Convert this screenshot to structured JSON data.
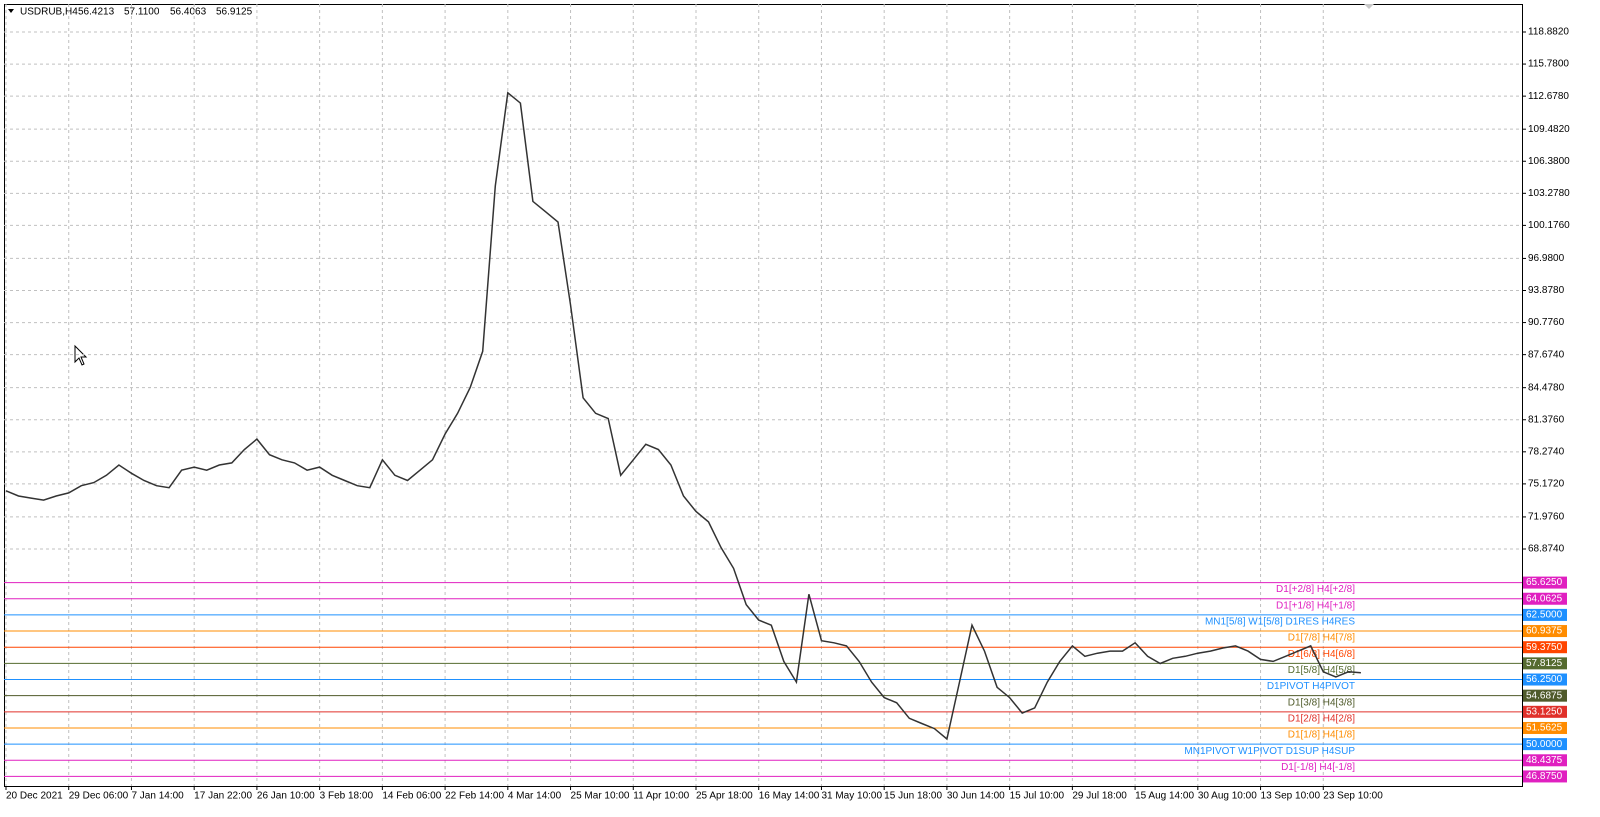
{
  "chart_data": {
    "type": "line",
    "title": "USDRUB,H4",
    "quote_labels": [
      "56.4213",
      "57.1100",
      "56.4063",
      "56.9125"
    ],
    "categories": [
      "20 Dec 2021",
      null,
      null,
      null,
      null,
      "29 Dec 06:00",
      null,
      null,
      null,
      null,
      "7 Jan 14:00",
      null,
      null,
      null,
      null,
      "17 Jan 22:00",
      null,
      null,
      null,
      null,
      "26 Jan 10:00",
      null,
      null,
      null,
      null,
      "3 Feb 18:00",
      null,
      null,
      null,
      null,
      "14 Feb 06:00",
      null,
      null,
      null,
      null,
      "22 Feb 14:00",
      null,
      null,
      null,
      null,
      "4 Mar 14:00",
      null,
      null,
      null,
      null,
      "25 Mar 10:00",
      null,
      null,
      null,
      null,
      "11 Apr 10:00",
      null,
      null,
      null,
      null,
      "25 Apr 18:00",
      null,
      null,
      null,
      null,
      "16 May 14:00",
      null,
      null,
      null,
      null,
      "31 May 10:00",
      null,
      null,
      null,
      null,
      "15 Jun 18:00",
      null,
      null,
      null,
      null,
      "30 Jun 14:00",
      null,
      null,
      null,
      null,
      "15 Jul 10:00",
      null,
      null,
      null,
      null,
      "29 Jul 18:00",
      null,
      null,
      null,
      null,
      "15 Aug 14:00",
      null,
      null,
      null,
      null,
      "30 Aug 10:00",
      null,
      null,
      null,
      null,
      "13 Sep 10:00",
      null,
      null,
      null,
      null,
      "23 Sep 10:00",
      null,
      null,
      null
    ],
    "series": [
      {
        "name": "USDRUB",
        "color": "#333333",
        "values": [
          74.5,
          74.0,
          73.8,
          73.6,
          74.0,
          74.3,
          75.0,
          75.3,
          76.0,
          77.0,
          76.2,
          75.5,
          75.0,
          74.8,
          76.5,
          76.8,
          76.5,
          77.0,
          77.2,
          78.5,
          79.5,
          78.0,
          77.5,
          77.2,
          76.5,
          76.8,
          76.0,
          75.5,
          75.0,
          74.8,
          77.5,
          76.0,
          75.5,
          76.5,
          77.5,
          80.0,
          82.0,
          84.5,
          88.0,
          104,
          113,
          112,
          102.5,
          101.5,
          100.5,
          92.5,
          83.5,
          82,
          81.5,
          76,
          77.5,
          79,
          78.5,
          77.0,
          74,
          72.5,
          71.5,
          69,
          67.0,
          63.5,
          62.0,
          61.5,
          58,
          56,
          64.5,
          60,
          59.8,
          59.5,
          58.0,
          56.0,
          54.5,
          54.0,
          52.5,
          52.0,
          51.5,
          50.5,
          56,
          61.5,
          59.0,
          55.5,
          54.5,
          53.0,
          53.5,
          56.0,
          58.0,
          59.5,
          58.5,
          58.8,
          59.0,
          59.0,
          59.8,
          58.5,
          57.8,
          58.3,
          58.5,
          58.8,
          59.0,
          59.3,
          59.5,
          59.0,
          58.2,
          58.0,
          58.5,
          59.0,
          59.5,
          57.0,
          56.5,
          57.0,
          56.9
        ]
      }
    ],
    "ylim": [
      45.95,
      121.59
    ],
    "yticks": [
      {
        "value": 118.882,
        "label": "118.8820"
      },
      {
        "value": 115.78,
        "label": "115.7800"
      },
      {
        "value": 112.678,
        "label": "112.6780"
      },
      {
        "value": 109.482,
        "label": "109.4820"
      },
      {
        "value": 106.38,
        "label": "106.3800"
      },
      {
        "value": 103.278,
        "label": "103.2780"
      },
      {
        "value": 100.176,
        "label": "100.1760"
      },
      {
        "value": 96.98,
        "label": "96.9800"
      },
      {
        "value": 93.878,
        "label": "93.8780"
      },
      {
        "value": 90.776,
        "label": "90.7760"
      },
      {
        "value": 87.674,
        "label": "87.6740"
      },
      {
        "value": 84.478,
        "label": "84.4780"
      },
      {
        "value": 81.376,
        "label": "81.3760"
      },
      {
        "value": 78.274,
        "label": "78.2740"
      },
      {
        "value": 75.172,
        "label": "75.1720"
      },
      {
        "value": 71.976,
        "label": "71.9760"
      },
      {
        "value": 68.874,
        "label": "68.8740"
      }
    ],
    "grid": true,
    "levels": [
      {
        "value": 65.625,
        "label": "65.6250",
        "text": "D1[+2/8] H4[+2/8]",
        "color": "#e020c0"
      },
      {
        "value": 64.0625,
        "label": "64.0625",
        "text": "D1[+1/8] H4[+1/8]",
        "color": "#e020c0"
      },
      {
        "value": 62.5,
        "label": "62.5000",
        "text": "MN1[5/8] W1[5/8] D1RES H4RES",
        "color": "#1e90ff"
      },
      {
        "value": 60.9375,
        "label": "60.9375",
        "text": "D1[7/8] H4[7/8]",
        "color": "#ff8c00"
      },
      {
        "value": 59.375,
        "label": "59.3750",
        "text": "D1[6/8] H4[6/8]",
        "color": "#ff4500"
      },
      {
        "value": 57.8125,
        "label": "57.8125",
        "text": "D1[5/8] H4[5/8]",
        "color": "#556b2f"
      },
      {
        "value": 56.25,
        "label": "56.2500",
        "text": "D1PIVOT H4PIVOT",
        "color": "#1e90ff"
      },
      {
        "value": 54.6875,
        "label": "54.6875",
        "text": "D1[3/8] H4[3/8]",
        "color": "#4f5a2a"
      },
      {
        "value": 53.125,
        "label": "53.1250",
        "text": "D1[2/8] H4[2/8]",
        "color": "#e0302a"
      },
      {
        "value": 51.5625,
        "label": "51.5625",
        "text": "D1[1/8] H4[1/8]",
        "color": "#ff8c00"
      },
      {
        "value": 50.0,
        "label": "50.0000",
        "text": "MN1PIVOT W1PIVOT D1SUP H4SUP",
        "color": "#1e90ff"
      },
      {
        "value": 48.4375,
        "label": "48.4375",
        "text": "D1[-1/8] H4[-1/8]",
        "color": "#e020c0"
      },
      {
        "value": 46.875,
        "label": "46.8750",
        "color": "#e020c0"
      }
    ]
  }
}
